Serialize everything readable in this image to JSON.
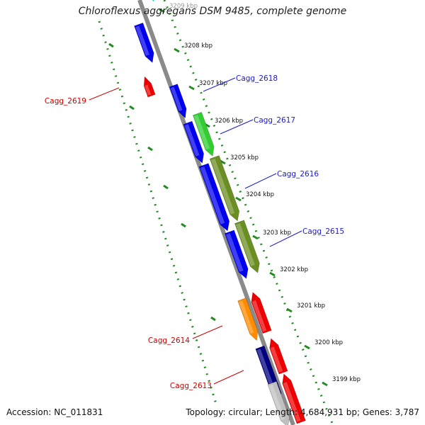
{
  "title": "Chloroflexus aggregans DSM 9485, complete genome",
  "footer": {
    "accession": "Accession: NC_011831",
    "topology": "Topology: circular; Length: 4,684,931 bp; Genes: 3,787"
  },
  "colors": {
    "backbone": "#8a8a8a",
    "scale": "#228b22",
    "label_forward": "#1a1acc",
    "label_reverse": "#cc0000"
  },
  "scale_labels": [
    "3209 kbp",
    "3208 kbp",
    "3207 kbp",
    "3206 kbp",
    "3205 kbp",
    "3204 kbp",
    "3203 kbp",
    "3202 kbp",
    "3201 kbp",
    "3200 kbp",
    "3199 kbp"
  ],
  "genes": [
    {
      "id": "cyan-gene",
      "color": "#00e5ee"
    },
    {
      "id": "blue-gene-1",
      "color": "#0000ee"
    },
    {
      "id": "red-gene-1",
      "color": "#ee0000"
    },
    {
      "id": "blue-gene-2",
      "color": "#0000ee"
    },
    {
      "id": "blue-gene-3",
      "color": "#0000ee"
    },
    {
      "id": "green-gene",
      "color": "#32cd32"
    },
    {
      "id": "blue-gene-4",
      "color": "#0000ee"
    },
    {
      "id": "olive-gene-1",
      "color": "#6b8e23"
    },
    {
      "id": "blue-gene-5",
      "color": "#0000ee"
    },
    {
      "id": "olive-gene-2",
      "color": "#6b8e23"
    },
    {
      "id": "orange-gene",
      "color": "#ff8c00"
    },
    {
      "id": "red-gene-2",
      "color": "#ee0000"
    },
    {
      "id": "navy-gene",
      "color": "#000080"
    },
    {
      "id": "red-gene-3",
      "color": "#ee0000"
    },
    {
      "id": "gray-gene",
      "color": "#c0c0c0"
    },
    {
      "id": "red-gene-4",
      "color": "#ee0000"
    }
  ],
  "gene_labels": [
    {
      "id": "cagg-2618",
      "text": "Cagg_2618",
      "strand": "forward"
    },
    {
      "id": "cagg-2617",
      "text": "Cagg_2617",
      "strand": "forward"
    },
    {
      "id": "cagg-2616",
      "text": "Cagg_2616",
      "strand": "forward"
    },
    {
      "id": "cagg-2615",
      "text": "Cagg_2615",
      "strand": "forward"
    },
    {
      "id": "cagg-2619",
      "text": "Cagg_2619",
      "strand": "reverse"
    },
    {
      "id": "cagg-2614",
      "text": "Cagg_2614",
      "strand": "reverse"
    },
    {
      "id": "cagg-2613",
      "text": "Cagg_2613",
      "strand": "reverse"
    }
  ]
}
